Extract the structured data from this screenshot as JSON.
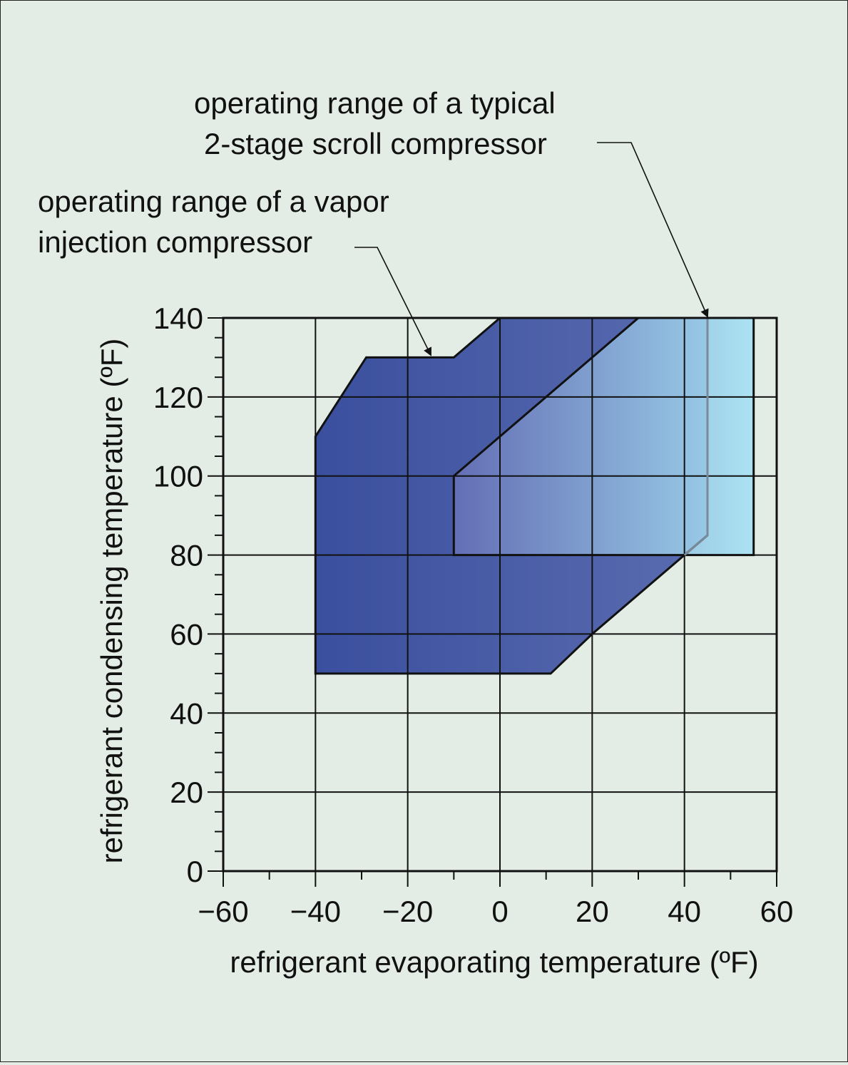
{
  "chart_data": {
    "type": "area",
    "title": "",
    "xlabel": "refrigerant evaporating temperature (ºF)",
    "ylabel": "refrigerant condensing temperature (ºF)",
    "xlim": [
      -60,
      60
    ],
    "ylim": [
      0,
      140
    ],
    "x_ticks": [
      -60,
      -40,
      -20,
      0,
      20,
      40,
      60
    ],
    "x_tick_labels": [
      "−60",
      "−40",
      "−20",
      "0",
      "20",
      "40",
      "60"
    ],
    "y_ticks": [
      0,
      20,
      40,
      60,
      80,
      100,
      120,
      140
    ],
    "y_tick_labels": [
      "0",
      "20",
      "40",
      "60",
      "80",
      "100",
      "120",
      "140"
    ],
    "grid": true,
    "series": [
      {
        "polygon": [
          [
            -40,
            50
          ],
          [
            -40,
            110
          ],
          [
            -29,
            130
          ],
          [
            -10,
            130
          ],
          [
            0,
            140
          ],
          [
            30,
            140
          ],
          [
            45,
            140
          ],
          [
            45,
            85
          ],
          [
            20,
            60
          ],
          [
            11,
            50
          ]
        ],
        "color_left": "#3a4f9e",
        "color_right": "#5a6cb0"
      },
      {
        "polygon": [
          [
            -10,
            80
          ],
          [
            -10,
            100
          ],
          [
            30,
            140
          ],
          [
            55,
            140
          ],
          [
            55,
            80
          ]
        ],
        "color_left": "#6670b6",
        "color_right": "#a6e2f3"
      }
    ],
    "annotations": [
      {
        "lines": [
          "operating range of a vapor",
          "injection compressor"
        ],
        "target": [
          -15,
          130
        ]
      },
      {
        "lines": [
          "operating range of a typical",
          "2-stage scroll compressor"
        ],
        "target": [
          45,
          140
        ]
      }
    ]
  }
}
